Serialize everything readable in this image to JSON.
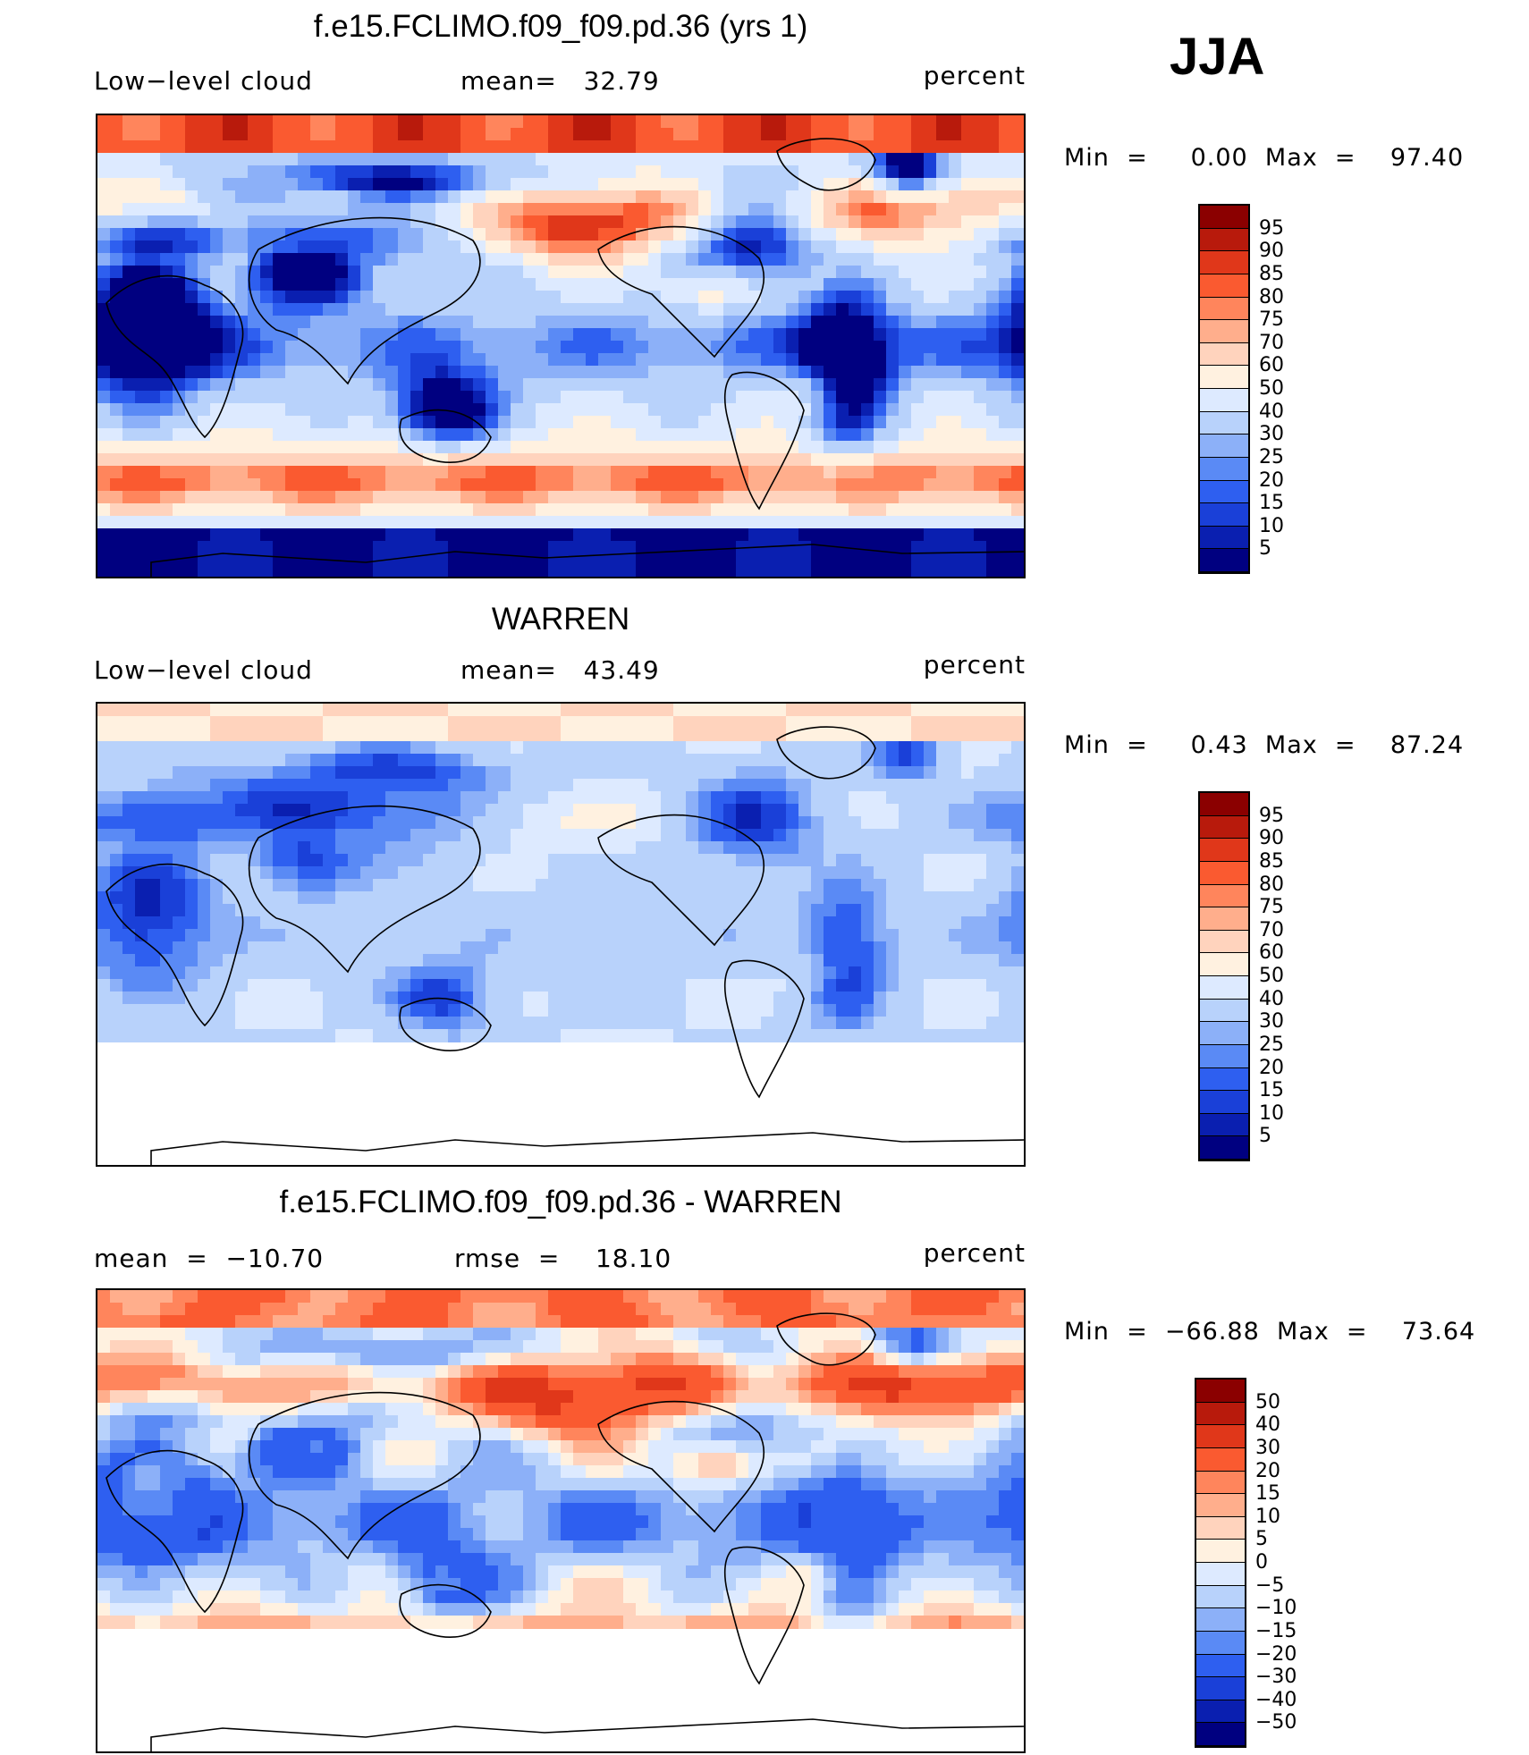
{
  "season": "JJA",
  "colors": {
    "seq": [
      "#000080",
      "#0a1fb0",
      "#1a40d8",
      "#2e5ff0",
      "#5a8af5",
      "#8cb0f8",
      "#b8d2fb",
      "#ddeaff",
      "#fff1e0",
      "#ffd3bd",
      "#ffae8c",
      "#ff855c",
      "#fa5a30",
      "#e0371a",
      "#b81a0c",
      "#8b0000"
    ],
    "diff": [
      "#000080",
      "#0a1fb0",
      "#1a40d8",
      "#2e5ff0",
      "#5a8af5",
      "#8cb0f8",
      "#b8d2fb",
      "#ddeaff",
      "#fff1e0",
      "#ffd3bd",
      "#ffae8c",
      "#ff855c",
      "#fa5a30",
      "#e0371a",
      "#b81a0c",
      "#8b0000"
    ]
  },
  "panels": [
    {
      "title": "f.e15.FCLIMO.f09_f09.pd.36 (yrs 1)",
      "left_label": "Low−level cloud",
      "center_label": "mean=   32.79",
      "right_label": "percent",
      "minmax": "Min  =     0.00  Max  =    97.40",
      "colorbar_labels": [
        "95",
        "90",
        "85",
        "80",
        "75",
        "70",
        "60",
        "50",
        "40",
        "30",
        "25",
        "20",
        "15",
        "10",
        "5"
      ],
      "palette": "seq"
    },
    {
      "title": "WARREN",
      "left_label": "Low−level cloud",
      "center_label": "mean=   43.49",
      "right_label": "percent",
      "minmax": "Min  =     0.43  Max  =    87.24",
      "colorbar_labels": [
        "95",
        "90",
        "85",
        "80",
        "75",
        "70",
        "60",
        "50",
        "40",
        "30",
        "25",
        "20",
        "15",
        "10",
        "5"
      ],
      "palette": "seq"
    },
    {
      "title": "f.e15.FCLIMO.f09_f09.pd.36 - WARREN",
      "left_label": "mean  =  −10.70",
      "center_label": "rmse  =    18.10",
      "right_label": "percent",
      "minmax": "Min  =  −66.88  Max  =    73.64",
      "colorbar_labels": [
        "50",
        "40",
        "30",
        "20",
        "15",
        "10",
        "5",
        "0",
        "−5",
        "−10",
        "−15",
        "−20",
        "−30",
        "−40",
        "−50"
      ],
      "palette": "diff"
    }
  ],
  "chart_data": [
    {
      "type": "heatmap",
      "title": "f.e15.FCLIMO.f09_f09.pd.36 (yrs 1)",
      "variable": "Low−level cloud",
      "units": "percent",
      "mean": 32.79,
      "min": 0.0,
      "max": 97.4,
      "levels": [
        5,
        10,
        15,
        20,
        25,
        30,
        40,
        50,
        60,
        70,
        75,
        80,
        85,
        90,
        95
      ],
      "xlim": [
        0,
        360
      ],
      "ylim": [
        -90,
        90
      ]
    },
    {
      "type": "heatmap",
      "title": "WARREN",
      "variable": "Low−level cloud",
      "units": "percent",
      "mean": 43.49,
      "min": 0.43,
      "max": 87.24,
      "levels": [
        5,
        10,
        15,
        20,
        25,
        30,
        40,
        50,
        60,
        70,
        75,
        80,
        85,
        90,
        95
      ],
      "xlim": [
        0,
        360
      ],
      "ylim": [
        -90,
        90
      ]
    },
    {
      "type": "heatmap",
      "title": "f.e15.FCLIMO.f09_f09.pd.36 - WARREN",
      "units": "percent",
      "mean": -10.7,
      "rmse": 18.1,
      "min": -66.88,
      "max": 73.64,
      "levels": [
        -50,
        -40,
        -30,
        -20,
        -15,
        -10,
        -5,
        0,
        5,
        10,
        15,
        20,
        30,
        40,
        50
      ],
      "xlim": [
        0,
        360
      ],
      "ylim": [
        -90,
        90
      ]
    }
  ]
}
